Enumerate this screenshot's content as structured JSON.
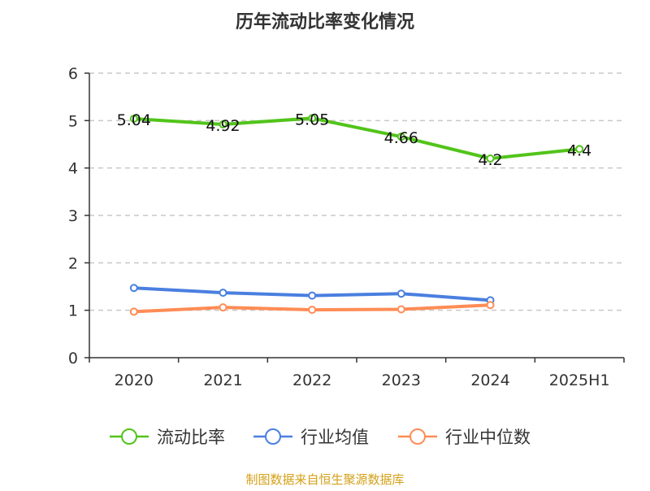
{
  "chart_data": {
    "type": "line",
    "title": "历年流动比率变化情况",
    "categories": [
      "2020",
      "2021",
      "2022",
      "2023",
      "2024",
      "2025H1"
    ],
    "ylim": [
      0,
      6
    ],
    "yticks": [
      "0",
      "1",
      "2",
      "3",
      "4",
      "5",
      "6"
    ],
    "grid": true,
    "legend_position": "bottom",
    "series": [
      {
        "name": "流动比率",
        "color": "#52c41a",
        "values": [
          5.04,
          4.92,
          5.05,
          4.66,
          4.2,
          4.4
        ],
        "labels": [
          "5.04",
          "4.92",
          "5.05",
          "4.66",
          "4.2",
          "4.4"
        ]
      },
      {
        "name": "行业均值",
        "color": "#4a7fe0",
        "values": [
          1.47,
          1.37,
          1.31,
          1.35,
          1.21,
          null
        ]
      },
      {
        "name": "行业中位数",
        "color": "#ff8c55",
        "values": [
          0.97,
          1.06,
          1.01,
          1.02,
          1.11,
          null
        ]
      }
    ],
    "source": "制图数据来自恒生聚源数据库"
  }
}
